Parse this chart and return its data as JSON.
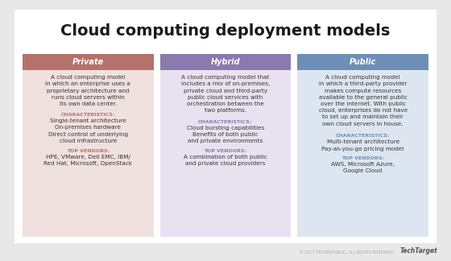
{
  "title": "Cloud computing deployment models",
  "outer_bg": "#e8e8e8",
  "card_bg": "#ffffff",
  "columns": [
    {
      "title": "Private",
      "header_bg": "#b5726a",
      "header_text_color": "#ffffff",
      "body_bg": "#f0e0de",
      "description": "A cloud computing model\nin which an enterprise uses a\nproprietary architecture and\nruns cloud servers within\nits own data center.",
      "char_label": "CHARACTERISTICS:",
      "char_color": "#b5726a",
      "characteristics": "Single-tenant architecture\nOn-premises hardware\nDirect control of underlying\ncloud infrastructure",
      "vendor_label": "TOP VENDORS:",
      "vendor_color": "#b5726a",
      "vendors": "HPE, VMware, Dell EMC, IBM/\nRed Hat, Microsoft, OpenStack",
      "desc_lines": 5,
      "char_lines": 4
    },
    {
      "title": "Hybrid",
      "header_bg": "#8b7aad",
      "header_text_color": "#ffffff",
      "body_bg": "#e8e2f0",
      "description": "A cloud computing model that\nincludes a mix of on-premises,\nprivate cloud and third-party\npublic cloud services with\norchestration between the\ntwo platforms.",
      "char_label": "CHARACTERISTICS:",
      "char_color": "#8b7aad",
      "characteristics": "Cloud bursting capabilities\nBenefits of both public\nand private environments",
      "vendor_label": "TOP VENDORS:",
      "vendor_color": "#8b7aad",
      "vendors": "A combination of both public\nand private cloud providers",
      "desc_lines": 6,
      "char_lines": 3
    },
    {
      "title": "Public",
      "header_bg": "#6e8fb5",
      "header_text_color": "#ffffff",
      "body_bg": "#dde6f0",
      "description": "A cloud computing model\nin which a third-party provider\nmakes compute resources\navailable to the general public\nover the internet. With public\ncloud, enterprises do not have\nto set up and maintain their\nown cloud servers in house.",
      "char_label": "CHARACTERISTICS:",
      "char_color": "#6e8fb5",
      "characteristics": "Multi-tenant architecture\nPay-as-you-go pricing model",
      "vendor_label": "TOP VENDORS:",
      "vendor_color": "#6e8fb5",
      "vendors": "AWS, Microsoft Azure,\nGoogle Cloud",
      "desc_lines": 8,
      "char_lines": 2
    }
  ],
  "watermark": "TechTarget",
  "watermark_prefix": "© 2017 TECHREPUBLIC, ALL RIGHTS RESERVED."
}
